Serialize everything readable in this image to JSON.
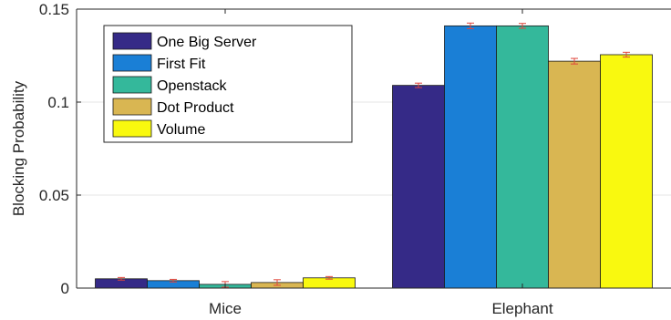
{
  "chart_data": {
    "type": "bar",
    "title": "",
    "xlabel": "",
    "ylabel": "Blocking Probability",
    "categories": [
      "Mice",
      "Elephant"
    ],
    "ylim": [
      0,
      0.15
    ],
    "yticks": [
      {
        "value": 0,
        "label": "0"
      },
      {
        "value": 0.05,
        "label": "0.05"
      },
      {
        "value": 0.1,
        "label": "0.1"
      },
      {
        "value": 0.15,
        "label": "0.15"
      }
    ],
    "grid": true,
    "legend_position": "top-left",
    "series": [
      {
        "name": "One Big Server",
        "color": "#352a87",
        "values": [
          0.005,
          0.109
        ],
        "errors": [
          0.0007,
          0.0012
        ]
      },
      {
        "name": "First Fit",
        "color": "#1a7fd6",
        "values": [
          0.004,
          0.141
        ],
        "errors": [
          0.0007,
          0.0015
        ]
      },
      {
        "name": "Openstack",
        "color": "#34b89b",
        "values": [
          0.002,
          0.141
        ],
        "errors": [
          0.0015,
          0.0013
        ]
      },
      {
        "name": "Dot Product",
        "color": "#d9b652",
        "values": [
          0.003,
          0.122
        ],
        "errors": [
          0.0015,
          0.0015
        ]
      },
      {
        "name": "Volume",
        "color": "#f9f90f",
        "values": [
          0.0055,
          0.1255
        ],
        "errors": [
          0.0007,
          0.0013
        ]
      }
    ],
    "error_bar_color": "#e0463c"
  }
}
